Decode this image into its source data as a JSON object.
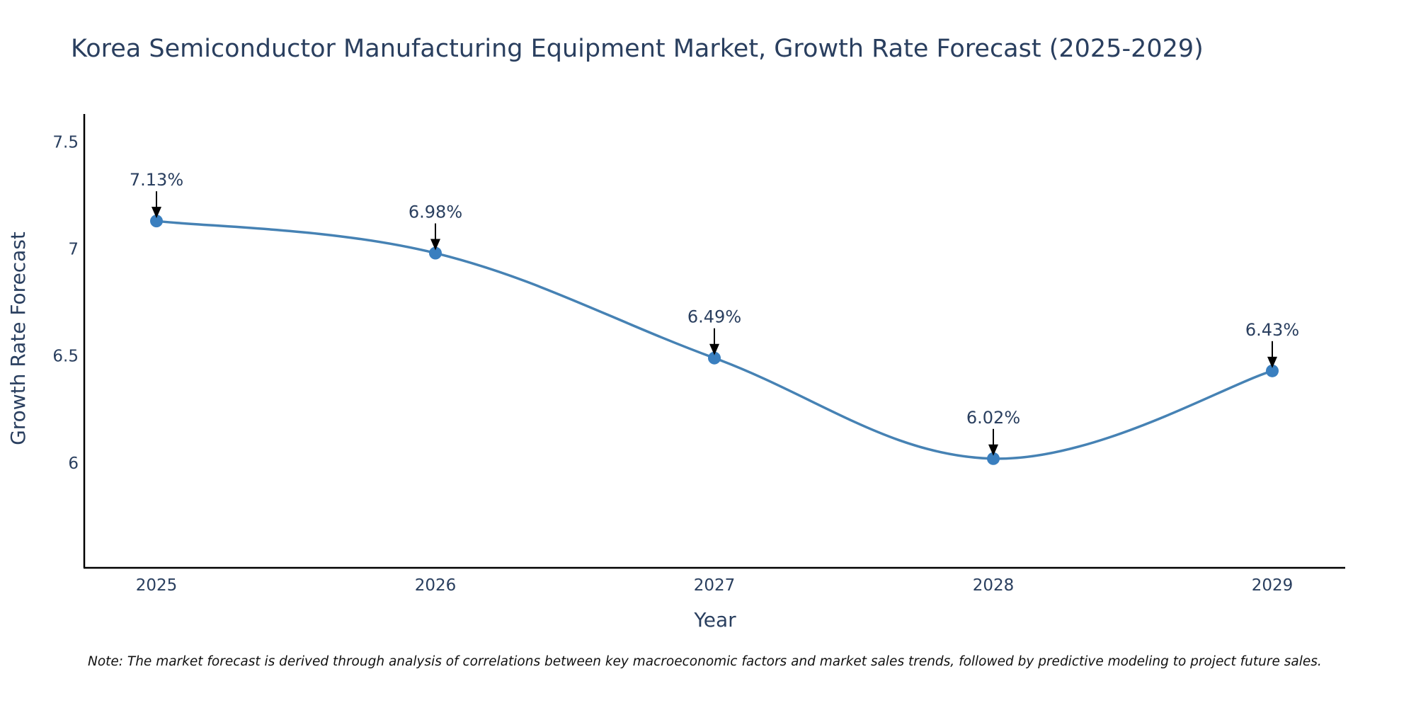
{
  "chart_data": {
    "type": "line",
    "title": "Korea Semiconductor Manufacturing Equipment Market, Growth Rate Forecast (2025-2029)",
    "xlabel": "Year",
    "ylabel": "Growth Rate Forecast",
    "categories": [
      "2025",
      "2026",
      "2027",
      "2028",
      "2029"
    ],
    "values": [
      7.13,
      6.98,
      6.49,
      6.02,
      6.43
    ],
    "labels": [
      "7.13%",
      "6.98%",
      "6.49%",
      "6.02%",
      "6.43%"
    ],
    "y_ticks": [
      6,
      6.5,
      7,
      7.5
    ],
    "y_tick_labels": [
      "6",
      "6.5",
      "7",
      "7.5"
    ],
    "ylim": [
      5.51,
      7.63
    ],
    "line_color": "#4682b4",
    "marker_color": "#3a7fbf",
    "grid": false,
    "note": "Note: The market forecast is derived through analysis of correlations between key macroeconomic factors and market sales trends, followed by predictive modeling to project future sales."
  }
}
